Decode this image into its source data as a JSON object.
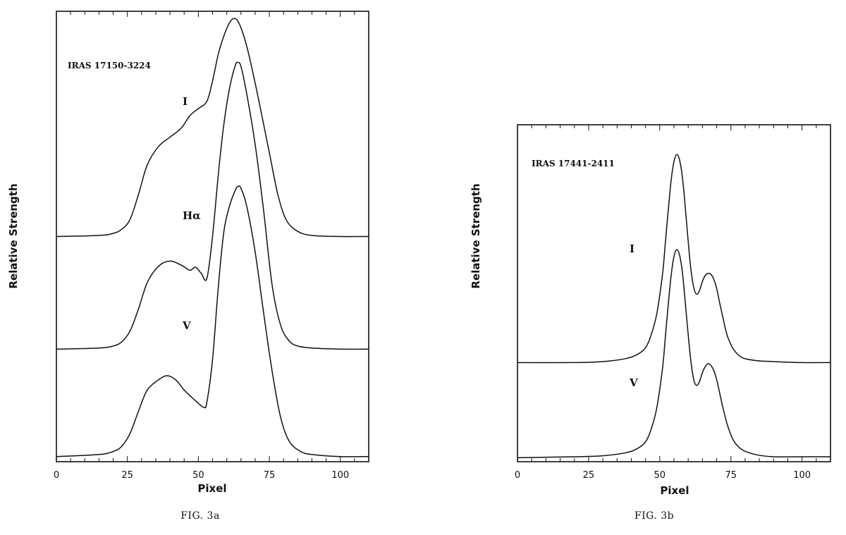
{
  "chart_data": [
    {
      "type": "line",
      "title": "IRAS 17150-3224",
      "xlabel": "Pixel",
      "ylabel": "Relative Strength",
      "caption": "FIG. 3a",
      "xlim": [
        0,
        110
      ],
      "x_ticks": [
        0,
        25,
        50,
        75,
        100
      ],
      "ylim": [
        0,
        4.4
      ],
      "grid": false,
      "series": [
        {
          "name": "I",
          "x": [
            0,
            15,
            20,
            23,
            26,
            29,
            32,
            36,
            40,
            44,
            47,
            50,
            53,
            55,
            57,
            59,
            61,
            62.5,
            64,
            66,
            68,
            70,
            72,
            75,
            78,
            81,
            85,
            90,
            100,
            110
          ],
          "y": [
            2.2,
            2.21,
            2.23,
            2.27,
            2.37,
            2.62,
            2.9,
            3.08,
            3.17,
            3.26,
            3.38,
            3.45,
            3.52,
            3.72,
            3.98,
            4.16,
            4.29,
            4.33,
            4.3,
            4.16,
            3.95,
            3.7,
            3.43,
            3.02,
            2.61,
            2.36,
            2.25,
            2.21,
            2.2,
            2.2
          ]
        },
        {
          "name": "Hα",
          "x": [
            0,
            15,
            20,
            23,
            26,
            29,
            32,
            36,
            40,
            44,
            47,
            49,
            51,
            53,
            55,
            57,
            59,
            61,
            63,
            64,
            65,
            67,
            70,
            73,
            76,
            79,
            82,
            85,
            90,
            100,
            110
          ],
          "y": [
            1.1,
            1.11,
            1.13,
            1.17,
            1.28,
            1.5,
            1.75,
            1.91,
            1.96,
            1.92,
            1.87,
            1.9,
            1.84,
            1.79,
            2.2,
            2.8,
            3.3,
            3.65,
            3.87,
            3.9,
            3.86,
            3.6,
            3.1,
            2.45,
            1.72,
            1.33,
            1.18,
            1.13,
            1.11,
            1.1,
            1.1
          ]
        },
        {
          "name": "V",
          "x": [
            0,
            15,
            20,
            23,
            26,
            29,
            32,
            36,
            39,
            42,
            45,
            48,
            50,
            52,
            53,
            55,
            57,
            59,
            61,
            63,
            64,
            65,
            67,
            70,
            73,
            76,
            79,
            82,
            86,
            90,
            100,
            110
          ],
          "y": [
            0.05,
            0.07,
            0.1,
            0.15,
            0.28,
            0.5,
            0.7,
            0.8,
            0.84,
            0.8,
            0.7,
            0.62,
            0.57,
            0.53,
            0.58,
            1.0,
            1.7,
            2.25,
            2.5,
            2.65,
            2.69,
            2.67,
            2.5,
            2.05,
            1.45,
            0.88,
            0.43,
            0.2,
            0.1,
            0.07,
            0.05,
            0.05
          ]
        }
      ],
      "annotations": [
        "IRAS 17150-3224",
        "I",
        "Hα",
        "V"
      ]
    },
    {
      "type": "line",
      "title": "IRAS 17441-2411",
      "xlabel": "Pixel",
      "ylabel": "Relative Strength",
      "caption": "FIG. 3b",
      "xlim": [
        0,
        110
      ],
      "x_ticks": [
        0,
        25,
        50,
        75,
        100
      ],
      "ylim": [
        0,
        3.4
      ],
      "grid": false,
      "series": [
        {
          "name": "I",
          "x": [
            0,
            20,
            30,
            38,
            42,
            45,
            47,
            49,
            51,
            52,
            53,
            54,
            55,
            56,
            57,
            58,
            59,
            60,
            61,
            62,
            63,
            64,
            65,
            66,
            67,
            68,
            69,
            70,
            71,
            72,
            73,
            74,
            76,
            79,
            84,
            90,
            100,
            110
          ],
          "y": [
            1.0,
            1.0,
            1.01,
            1.04,
            1.08,
            1.15,
            1.28,
            1.5,
            1.9,
            2.22,
            2.54,
            2.84,
            3.03,
            3.1,
            3.04,
            2.86,
            2.56,
            2.22,
            1.93,
            1.75,
            1.69,
            1.73,
            1.82,
            1.88,
            1.9,
            1.89,
            1.84,
            1.75,
            1.61,
            1.48,
            1.35,
            1.25,
            1.13,
            1.05,
            1.02,
            1.01,
            1.0,
            1.0
          ]
        },
        {
          "name": "V",
          "x": [
            0,
            20,
            30,
            38,
            42,
            45,
            47,
            49,
            51,
            52,
            53,
            54,
            55,
            56,
            57,
            58,
            59,
            60,
            61,
            62,
            63,
            64,
            65,
            66,
            67,
            68,
            69,
            70,
            71,
            72,
            73,
            74,
            76,
            79,
            84,
            90,
            100,
            110
          ],
          "y": [
            0.04,
            0.05,
            0.06,
            0.09,
            0.13,
            0.2,
            0.33,
            0.55,
            0.95,
            1.27,
            1.59,
            1.88,
            2.07,
            2.14,
            2.08,
            1.9,
            1.6,
            1.28,
            1.0,
            0.82,
            0.77,
            0.81,
            0.9,
            0.96,
            0.99,
            0.97,
            0.92,
            0.83,
            0.7,
            0.57,
            0.45,
            0.35,
            0.21,
            0.12,
            0.07,
            0.05,
            0.05,
            0.05
          ]
        }
      ],
      "annotations": [
        "IRAS 17441-2411",
        "I",
        "V"
      ]
    }
  ]
}
